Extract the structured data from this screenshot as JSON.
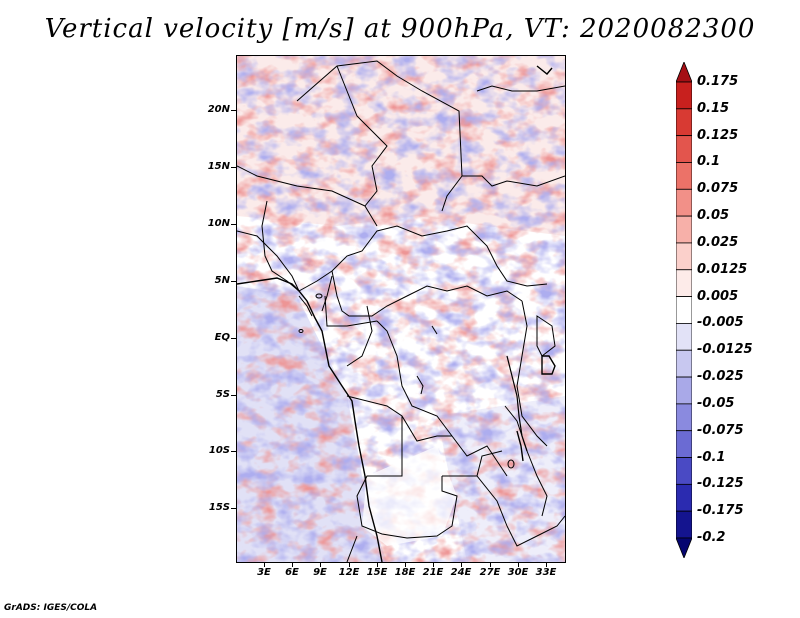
{
  "title": "Vertical velocity [m/s] at 900hPa, VT: 2020082300",
  "map": {
    "latitude_labels": [
      "20N",
      "15N",
      "10N",
      "5N",
      "EQ",
      "5S",
      "10S",
      "15S"
    ],
    "longitude_labels": [
      "3E",
      "6E",
      "9E",
      "12E",
      "15E",
      "18E",
      "21E",
      "24E",
      "27E",
      "30E",
      "33E"
    ]
  },
  "colorbar": {
    "labels": [
      "0.175",
      "0.15",
      "0.125",
      "0.1",
      "0.075",
      "0.05",
      "0.025",
      "0.0125",
      "0.005",
      "-0.005",
      "-0.0125",
      "-0.025",
      "-0.05",
      "-0.075",
      "-0.1",
      "-0.125",
      "-0.175",
      "-0.2"
    ],
    "colors": [
      "#a50f15",
      "#c8201e",
      "#d83a33",
      "#e3554d",
      "#ec7268",
      "#f29088",
      "#f7b0a9",
      "#fbd0cb",
      "#fdebe9",
      "#ffffff",
      "#e2e2f7",
      "#c8c8f0",
      "#a9a9e8",
      "#8a8adf",
      "#6b6bd3",
      "#4a4ac4",
      "#2b2bb0",
      "#14148f",
      "#050570"
    ]
  },
  "footer": "GrADS: IGES/COLA"
}
